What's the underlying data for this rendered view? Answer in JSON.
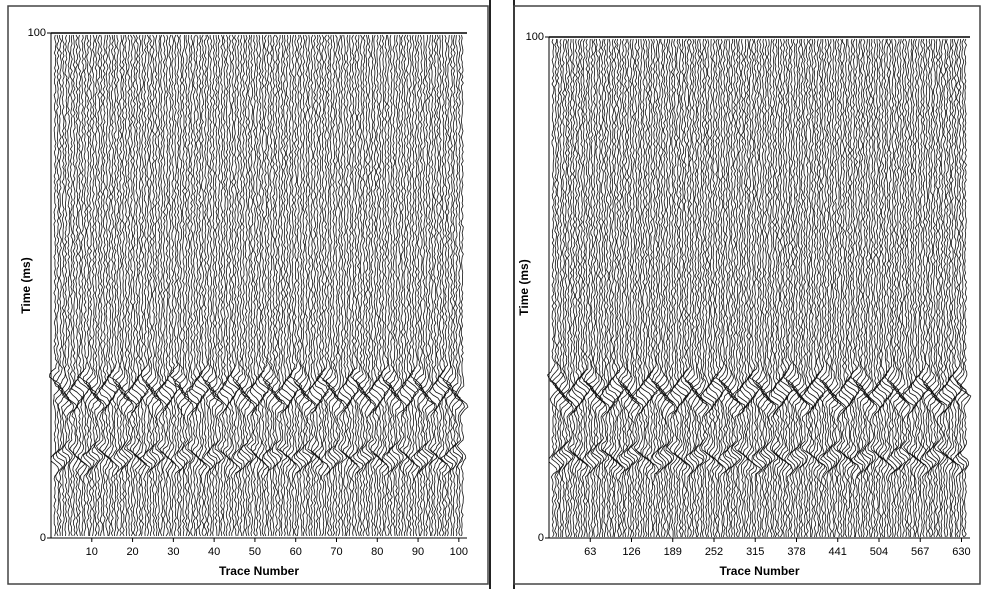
{
  "chart_data": [
    {
      "type": "seismic",
      "x_label": "Trace Number",
      "y_label": "Time (ms)",
      "xlim": [
        0,
        102
      ],
      "xticks": [
        10,
        20,
        30,
        40,
        50,
        60,
        70,
        80,
        90,
        100
      ],
      "ylim": [
        0,
        100
      ],
      "yticks": [
        0,
        100
      ]
    },
    {
      "type": "seismic",
      "x_label": "Trace Number",
      "y_label": "Time (ms)",
      "xlim": [
        0,
        643
      ],
      "xticks": [
        63,
        126,
        189,
        252,
        315,
        378,
        441,
        504,
        567,
        630
      ],
      "ylim": [
        0,
        100
      ],
      "yticks": [
        0,
        100
      ]
    }
  ]
}
